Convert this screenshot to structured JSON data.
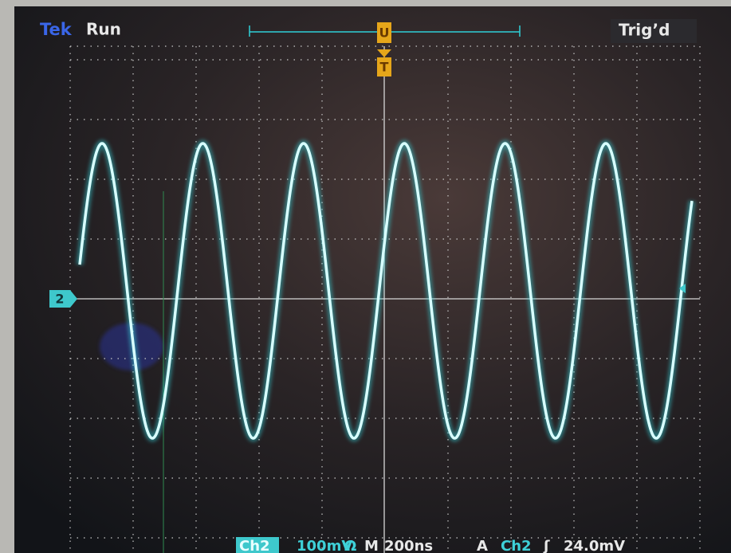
{
  "header": {
    "brand": "Tek",
    "status": "Run",
    "trigger_status": "Trig’d",
    "position_marker": "U",
    "trigger_marker": "T"
  },
  "channel_marker": "2",
  "footer": {
    "channel": "Ch2",
    "volts_per_div": "100mV",
    "coupling": "Ω",
    "time_label": "M",
    "time_per_div": "200ns",
    "trigger_label": "A",
    "trigger_source": "Ch2",
    "trigger_slope": "ʃ",
    "trigger_level": "24.0mV"
  }
}
